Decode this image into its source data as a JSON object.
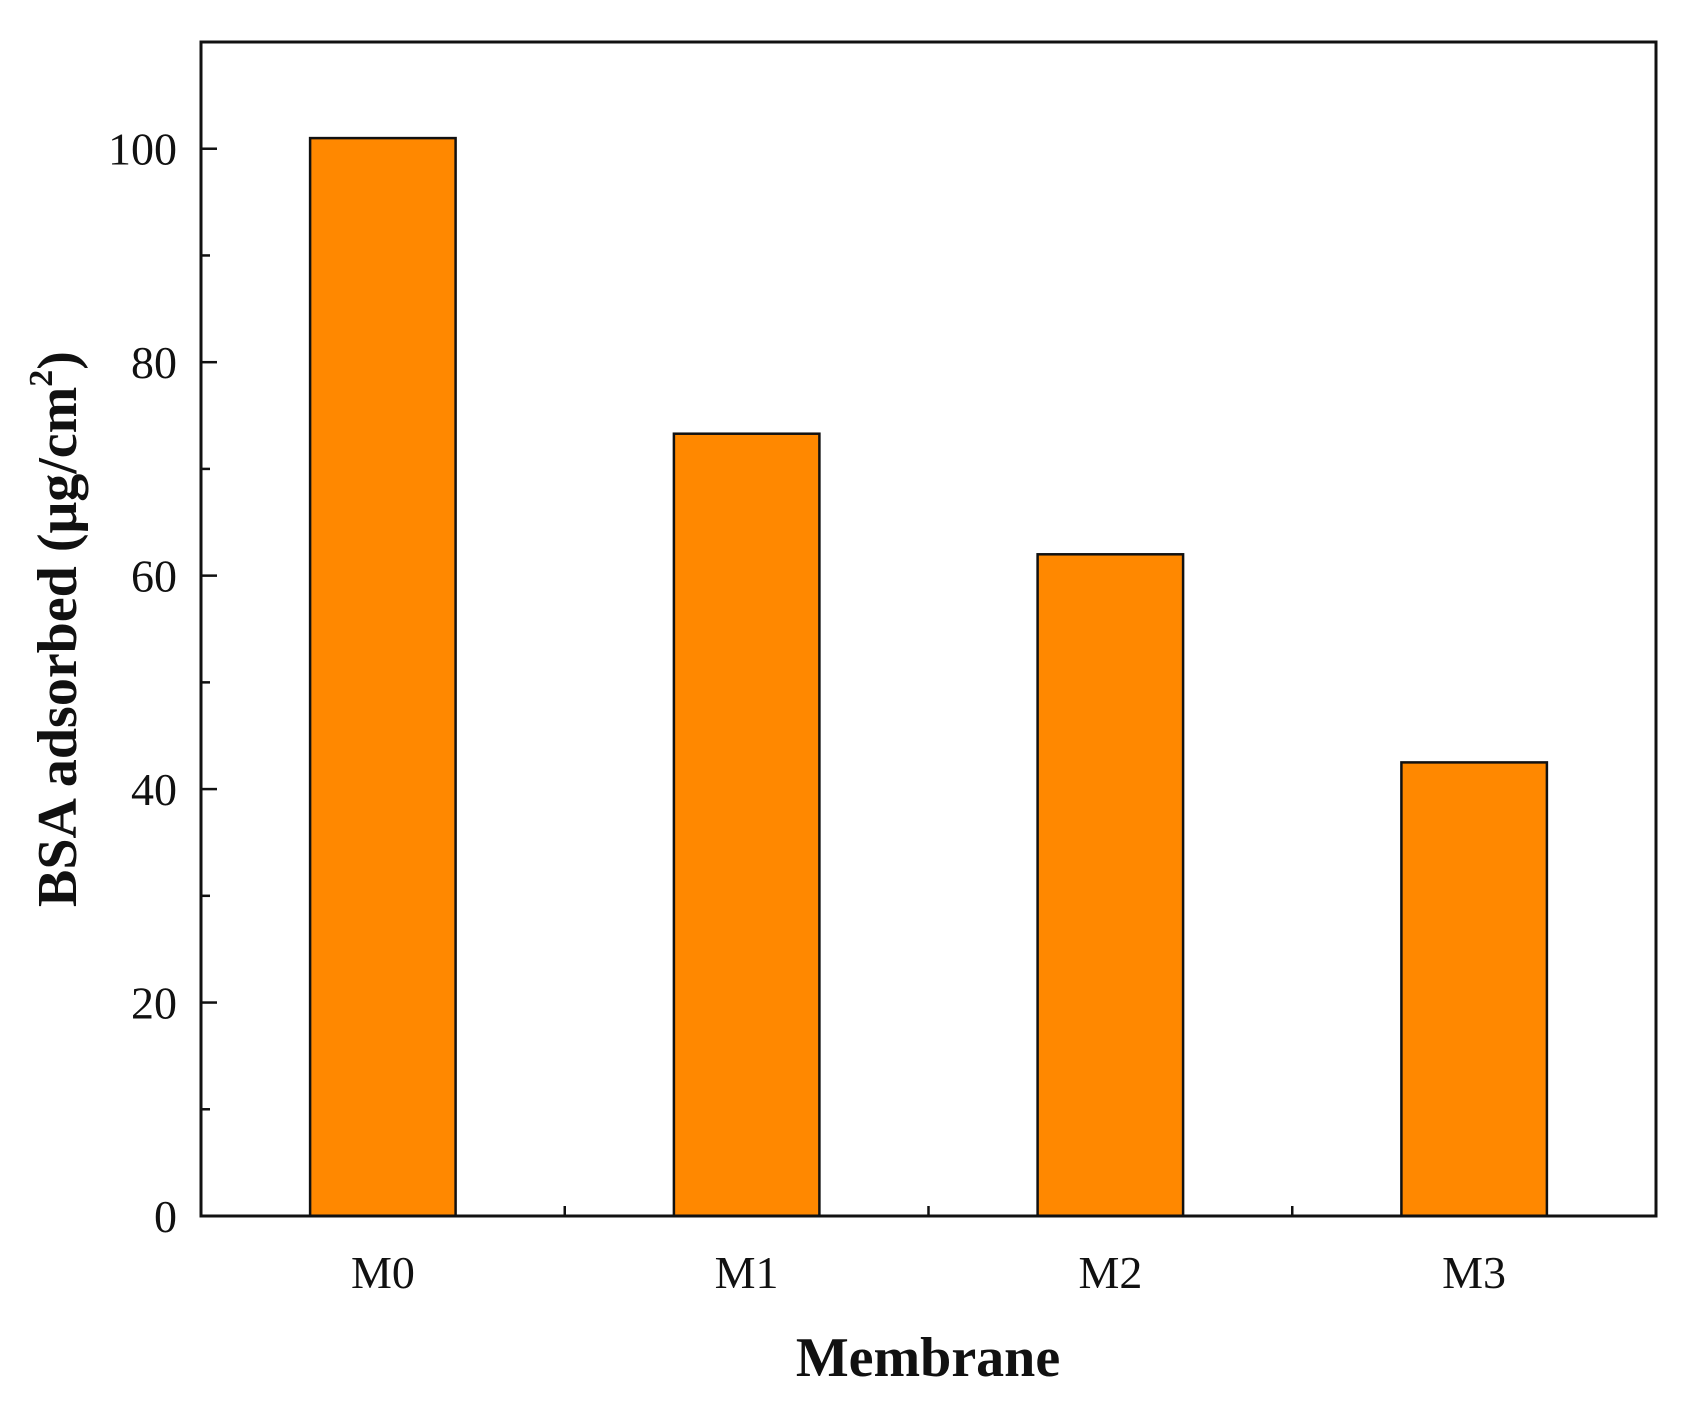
{
  "chart_data": {
    "type": "bar",
    "title": "",
    "xlabel": "Membrane",
    "ylabel": {
      "main": "BSA  adsorbed (μg/cm",
      "superscript": "2",
      "close": ")"
    },
    "categories": [
      "M0",
      "M1",
      "M2",
      "M3"
    ],
    "values": [
      101,
      73.3,
      62,
      42.5
    ],
    "ylim": [
      0,
      110
    ],
    "y_major_ticks": [
      0,
      20,
      40,
      60,
      80,
      100
    ],
    "y_minor_ticks": [
      10,
      30,
      50,
      70,
      90
    ],
    "grid": false,
    "legend": "none",
    "bar_color": "#ff8800",
    "bar_edge_color": "#111111"
  }
}
